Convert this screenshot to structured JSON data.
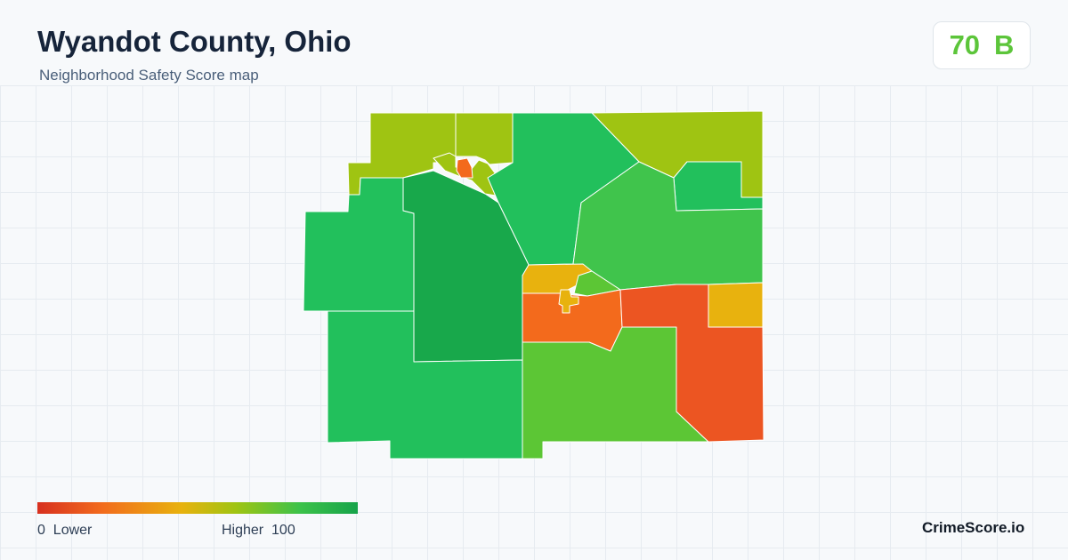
{
  "header": {
    "title": "Wyandot County, Ohio",
    "subtitle": "Neighborhood Safety Score map"
  },
  "score": {
    "value": "70",
    "grade": "B",
    "color": "#5cc53a"
  },
  "legend": {
    "min": "0",
    "min_label": "Lower",
    "max_label": "Higher",
    "max": "100",
    "low_text": "0  Lower",
    "high_text": "Higher  100",
    "gradient_colors": [
      "#d7301f",
      "#f26b1d",
      "#e8b20e",
      "#9fc412",
      "#3cc24a",
      "#17a34a"
    ]
  },
  "brand": "CrimeScore.io",
  "colors": {
    "dark_green": "#18a84b",
    "green": "#22c05c",
    "light_green": "#40c44c",
    "yellow_green": "#5cc635",
    "lime": "#9fc412",
    "yellow": "#e8b20e",
    "orange": "#f36a1c",
    "red_orange": "#ec5522"
  }
}
